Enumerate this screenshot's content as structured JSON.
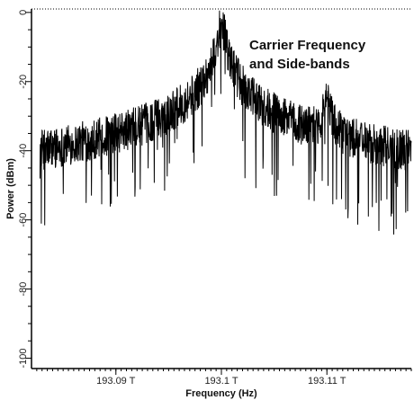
{
  "chart_data": {
    "type": "line",
    "title": "",
    "xlabel": "Frequency (Hz)",
    "ylabel": "Power (dBm)",
    "annotation_lines": [
      "Carrier Frequency",
      "and Side-bands"
    ],
    "x_unit": "THz",
    "xlim": [
      193.082,
      193.118
    ],
    "ylim": [
      -103,
      1
    ],
    "grid": false,
    "x_ticks": [
      {
        "value": 193.09,
        "label": "193.09 T"
      },
      {
        "value": 193.1,
        "label": "193.1 T"
      },
      {
        "value": 193.11,
        "label": "193.11 T"
      }
    ],
    "y_ticks": [
      {
        "value": 0,
        "label": "0"
      },
      {
        "value": -20,
        "label": "-20"
      },
      {
        "value": -40,
        "label": "-40"
      },
      {
        "value": -60,
        "label": "-60"
      },
      {
        "value": -80,
        "label": "-80"
      },
      {
        "value": -100,
        "label": "-100"
      }
    ],
    "series": [
      {
        "noise_floor_dbm": -73,
        "peaks": [
          {
            "x": 193.1,
            "y": -3
          },
          {
            "x": 193.11,
            "y": -25
          }
        ],
        "start_x": 193.0828,
        "end_x": 193.118,
        "color": "#000000"
      }
    ]
  }
}
